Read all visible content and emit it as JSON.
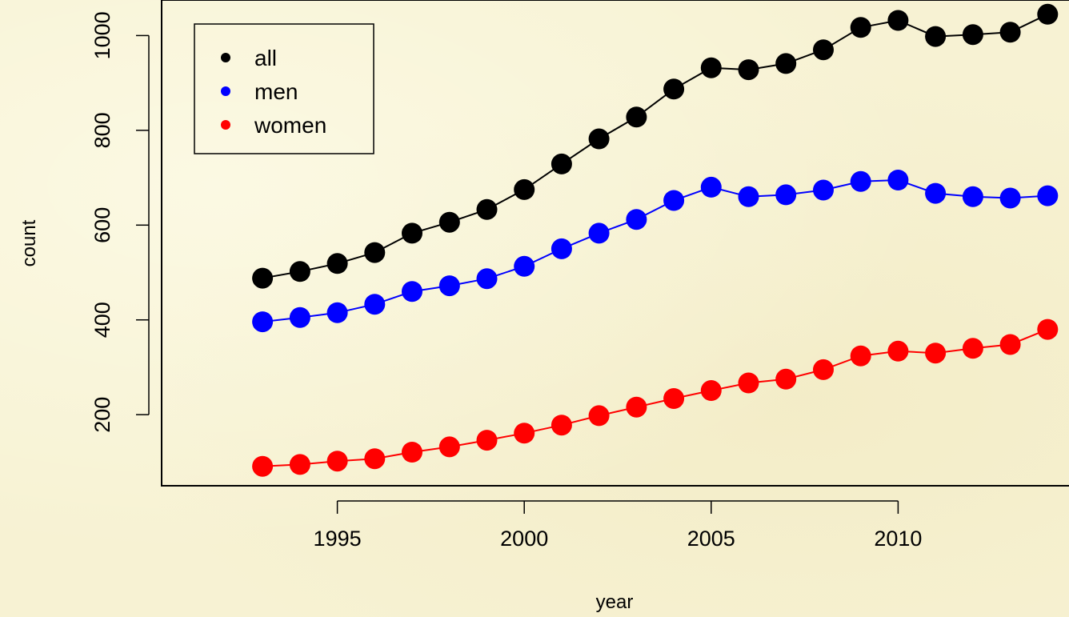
{
  "chart_data": {
    "type": "line",
    "title": "",
    "xlabel": "year",
    "ylabel": "count",
    "x": [
      1993,
      1994,
      1995,
      1996,
      1997,
      1998,
      1999,
      2000,
      2001,
      2002,
      2003,
      2004,
      2005,
      2006,
      2007,
      2008,
      2009,
      2010,
      2011,
      2012,
      2013,
      2014
    ],
    "xticks": [
      1995,
      2000,
      2005,
      2010
    ],
    "yticks": [
      200,
      400,
      600,
      800,
      1000
    ],
    "xlim": [
      1990.3,
      2014.7
    ],
    "ylim": [
      50,
      1075
    ],
    "grid": false,
    "legend_position": "top-left",
    "series": [
      {
        "name": "all",
        "color": "#000000",
        "values": [
          488,
          502,
          519,
          542,
          583,
          606,
          633,
          675,
          729,
          782,
          828,
          887,
          932,
          928,
          941,
          970,
          1017,
          1032,
          998,
          1002,
          1007,
          1045
        ]
      },
      {
        "name": "men",
        "color": "#0000ff",
        "values": [
          396,
          405,
          415,
          433,
          460,
          472,
          487,
          513,
          550,
          583,
          612,
          652,
          680,
          660,
          664,
          674,
          692,
          695,
          667,
          660,
          657,
          662
        ]
      },
      {
        "name": "women",
        "color": "#ff0000",
        "values": [
          91,
          95,
          102,
          107,
          121,
          132,
          146,
          161,
          178,
          198,
          216,
          234,
          251,
          267,
          275,
          295,
          324,
          334,
          330,
          340,
          348,
          380
        ]
      }
    ]
  }
}
